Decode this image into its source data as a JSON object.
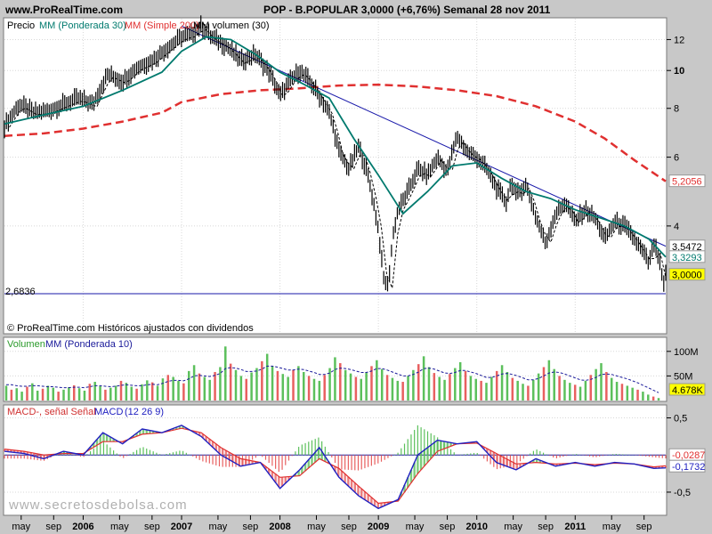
{
  "header": {
    "site": "www.ProRealTime.com",
    "title": "POP - B.POPULAR    3,0000 (+6,76%)    Semanal  28 nov 2011"
  },
  "footer_watermark": "www.secretosdebolsa.com",
  "colors": {
    "background": "#c8c8c8",
    "panel": "#ffffff",
    "price": "#000000",
    "wma30": "#007a6e",
    "sma200": "#e03030",
    "trendline": "#1a1aaa",
    "support": "#1a1aaa",
    "volume_up": "#5cc05c",
    "volume_down": "#e86060",
    "macd": "#2020c0",
    "signal": "#e03030",
    "hist_pos": "#5cc05c",
    "hist_neg": "#e86060"
  },
  "panels": {
    "price": {
      "legend": {
        "precio": "Precio",
        "wma": "MM (Ponderada 30)",
        "sma": "MM (Simple 200)",
        "vol": "MM volumen (30)"
      },
      "attribution": "© ProRealTime.com Históricos ajustados con dividendos",
      "yticks": [
        "12",
        "10",
        "8",
        "6",
        "4"
      ],
      "support_label": "2,6836",
      "value_tags": [
        {
          "text": "5,2056",
          "color": "#e03030",
          "bg": "#ffffff"
        },
        {
          "text": "3,5472",
          "color": "#000000",
          "bg": "#ffffff"
        },
        {
          "text": "3,3293",
          "color": "#007a6e",
          "bg": "#ffffff"
        },
        {
          "text": "3,0000",
          "color": "#000000",
          "bg": "#ffff00"
        }
      ]
    },
    "volume": {
      "legend": {
        "vol": "Volumen",
        "wma": "MM (Ponderada 10)"
      },
      "yticks": [
        "100M",
        "50M"
      ],
      "tag": {
        "text": "4.678K",
        "color": "#000000",
        "bg": "#ffff00"
      }
    },
    "macd": {
      "legend": {
        "diff": "MACD-, señal Señal",
        "macd": "MACD",
        "params": "(12 26 9)"
      },
      "yticks": [
        "0,5",
        "-0,5"
      ],
      "value_tags": [
        {
          "text": "-0,0287",
          "color": "#e03030",
          "bg": "#ffffff"
        },
        {
          "text": "-0,1732",
          "color": "#2020c0",
          "bg": "#ffffff"
        }
      ]
    }
  },
  "chart_data": {
    "type": "line",
    "title": "POP - B.POPULAR    3,0000 (+6,76%)    Semanal  28 nov 2011",
    "x_axis_labels": [
      "may",
      "sep",
      "2006",
      "may",
      "sep",
      "2007",
      "may",
      "sep",
      "2008",
      "may",
      "sep",
      "2009",
      "may",
      "sep",
      "2010",
      "may",
      "sep",
      "2011",
      "may",
      "sep"
    ],
    "y_scale": "log",
    "ylim": [
      2.6,
      13.5
    ],
    "last_close": 3.0,
    "change_pct": 6.76,
    "support_level": 2.6836,
    "latest_values": {
      "sma200": 5.2056,
      "trendline": 3.5472,
      "wma30": 3.3293
    },
    "trendline": {
      "from": {
        "t": 2007.0,
        "v": 13.0
      },
      "to": {
        "t": 2011.92,
        "v": 3.55
      }
    },
    "series": [
      {
        "name": "Precio",
        "t": [
          2005.2,
          2005.35,
          2005.5,
          2005.65,
          2005.8,
          2005.95,
          2006.1,
          2006.25,
          2006.4,
          2006.55,
          2006.7,
          2006.85,
          2007.0,
          2007.1,
          2007.2,
          2007.3,
          2007.45,
          2007.6,
          2007.75,
          2007.9,
          2008.0,
          2008.1,
          2008.2,
          2008.3,
          2008.4,
          2008.5,
          2008.6,
          2008.7,
          2008.8,
          2008.9,
          2009.0,
          2009.05,
          2009.1,
          2009.15,
          2009.2,
          2009.3,
          2009.4,
          2009.5,
          2009.6,
          2009.7,
          2009.8,
          2009.9,
          2010.0,
          2010.1,
          2010.2,
          2010.3,
          2010.35,
          2010.4,
          2010.5,
          2010.6,
          2010.7,
          2010.8,
          2010.9,
          2011.0,
          2011.1,
          2011.2,
          2011.3,
          2011.4,
          2011.5,
          2011.6,
          2011.7,
          2011.75,
          2011.8,
          2011.85,
          2011.9,
          2011.92
        ],
        "values": [
          7.2,
          8.2,
          7.8,
          7.9,
          8.2,
          8.5,
          8.2,
          9.8,
          9.4,
          10.2,
          10.6,
          11.4,
          12.2,
          12.4,
          13.0,
          12.2,
          11.6,
          10.6,
          11.0,
          9.8,
          8.6,
          9.4,
          10.0,
          9.4,
          8.6,
          7.8,
          6.2,
          5.6,
          6.4,
          5.3,
          3.9,
          2.95,
          2.8,
          3.8,
          4.4,
          4.9,
          5.6,
          5.4,
          6.0,
          5.5,
          6.8,
          6.2,
          6.0,
          5.6,
          5.0,
          4.6,
          5.2,
          4.8,
          5.1,
          4.2,
          3.6,
          4.3,
          4.6,
          4.1,
          4.4,
          4.2,
          3.7,
          4.1,
          4.0,
          3.7,
          3.4,
          3.2,
          3.6,
          3.3,
          2.81,
          3.0
        ]
      },
      {
        "name": "MM (Ponderada 30)",
        "t": [
          2005.2,
          2005.6,
          2006.0,
          2006.4,
          2006.8,
          2007.0,
          2007.25,
          2007.5,
          2007.75,
          2008.0,
          2008.25,
          2008.5,
          2008.75,
          2009.0,
          2009.25,
          2009.5,
          2009.75,
          2010.0,
          2010.25,
          2010.5,
          2010.75,
          2011.0,
          2011.25,
          2011.5,
          2011.75,
          2011.92
        ],
        "values": [
          7.3,
          7.7,
          8.1,
          8.9,
          9.9,
          11.2,
          12.2,
          12.0,
          11.0,
          9.9,
          9.2,
          8.5,
          6.7,
          5.4,
          4.3,
          4.9,
          5.7,
          5.8,
          5.3,
          4.9,
          4.7,
          4.4,
          4.2,
          4.0,
          3.7,
          3.33
        ]
      },
      {
        "name": "MM (Simple 200)",
        "t": [
          2005.2,
          2005.6,
          2006.0,
          2006.4,
          2006.8,
          2007.0,
          2007.4,
          2007.8,
          2008.2,
          2008.6,
          2009.0,
          2009.4,
          2009.8,
          2010.2,
          2010.6,
          2011.0,
          2011.3,
          2011.6,
          2011.92
        ],
        "values": [
          6.8,
          6.9,
          7.1,
          7.4,
          7.8,
          8.3,
          8.7,
          8.9,
          9.0,
          9.15,
          9.2,
          9.1,
          8.9,
          8.6,
          8.1,
          7.4,
          6.7,
          5.9,
          5.2056
        ]
      }
    ],
    "volume": {
      "name": "Volumen",
      "unit": "M",
      "ylim": [
        0,
        125
      ],
      "yticks": [
        50,
        100
      ],
      "last": "4.678K",
      "values": [
        30,
        22,
        25,
        18,
        28,
        35,
        20,
        24,
        30,
        26,
        18,
        22,
        27,
        31,
        25,
        20,
        34,
        38,
        29,
        22,
        26,
        30,
        40,
        36,
        28,
        24,
        33,
        41,
        37,
        30,
        45,
        52,
        48,
        40,
        35,
        60,
        72,
        55,
        48,
        42,
        58,
        68,
        110,
        75,
        62,
        50,
        44,
        57,
        66,
        80,
        95,
        70,
        60,
        54,
        48,
        62,
        70,
        58,
        50,
        44,
        40,
        52,
        66,
        88,
        76,
        62,
        55,
        48,
        44,
        58,
        70,
        82,
        64,
        52,
        46,
        40,
        38,
        50,
        62,
        74,
        90,
        68,
        56,
        48,
        42,
        54,
        66,
        78,
        60,
        50,
        44,
        40,
        36,
        48,
        60,
        72,
        58,
        46,
        40,
        34,
        30,
        42,
        55,
        68,
        82,
        64,
        50,
        42,
        36,
        32,
        28,
        40,
        52,
        64,
        76,
        58,
        46,
        38,
        34,
        30,
        26,
        22,
        18,
        12,
        8,
        5
      ],
      "ma": [
        32,
        32,
        30,
        29,
        29,
        30,
        30,
        29,
        28,
        28,
        27,
        26,
        26,
        27,
        27,
        26,
        28,
        30,
        30,
        29,
        28,
        29,
        31,
        32,
        31,
        30,
        30,
        32,
        33,
        32,
        35,
        39,
        41,
        41,
        40,
        44,
        50,
        51,
        50,
        49,
        51,
        55,
        65,
        67,
        66,
        63,
        59,
        59,
        60,
        64,
        70,
        70,
        68,
        65,
        62,
        62,
        64,
        63,
        60,
        57,
        53,
        53,
        56,
        63,
        66,
        65,
        63,
        60,
        57,
        57,
        60,
        65,
        65,
        62,
        58,
        54,
        50,
        50,
        53,
        58,
        65,
        66,
        64,
        60,
        56,
        55,
        57,
        61,
        61,
        58,
        55,
        51,
        47,
        47,
        50,
        54,
        55,
        53,
        50,
        46,
        42,
        42,
        45,
        50,
        56,
        58,
        57,
        54,
        50,
        46,
        42,
        41,
        43,
        47,
        53,
        54,
        53,
        50,
        47,
        44,
        40,
        36,
        31,
        26,
        21,
        16
      ]
    },
    "macd": {
      "ylim": [
        -0.8,
        0.65
      ],
      "yticks": [
        0.5,
        -0.5
      ],
      "last_diff": -0.0287,
      "last_macd": -0.1732,
      "t": [
        2005.2,
        2005.4,
        2005.6,
        2005.8,
        2006.0,
        2006.2,
        2006.4,
        2006.6,
        2006.8,
        2007.0,
        2007.2,
        2007.4,
        2007.6,
        2007.8,
        2008.0,
        2008.2,
        2008.4,
        2008.6,
        2008.8,
        2009.0,
        2009.2,
        2009.4,
        2009.6,
        2009.8,
        2010.0,
        2010.2,
        2010.4,
        2010.6,
        2010.8,
        2011.0,
        2011.2,
        2011.4,
        2011.6,
        2011.8,
        2011.92
      ],
      "macd_line": [
        0.05,
        0.02,
        -0.05,
        0.05,
        0.0,
        0.3,
        0.15,
        0.35,
        0.3,
        0.4,
        0.25,
        0.0,
        -0.15,
        -0.1,
        -0.45,
        -0.2,
        0.1,
        -0.3,
        -0.55,
        -0.72,
        -0.6,
        0.0,
        0.2,
        0.15,
        0.18,
        -0.1,
        -0.2,
        -0.05,
        -0.15,
        -0.1,
        -0.15,
        -0.1,
        -0.12,
        -0.18,
        -0.1732
      ],
      "signal": [
        0.08,
        0.05,
        0.0,
        0.02,
        0.02,
        0.18,
        0.18,
        0.28,
        0.3,
        0.36,
        0.3,
        0.1,
        -0.05,
        -0.1,
        -0.3,
        -0.28,
        -0.05,
        -0.18,
        -0.42,
        -0.65,
        -0.62,
        -0.25,
        0.05,
        0.15,
        0.16,
        0.02,
        -0.12,
        -0.1,
        -0.12,
        -0.11,
        -0.13,
        -0.11,
        -0.12,
        -0.16,
        -0.1445
      ]
    }
  }
}
